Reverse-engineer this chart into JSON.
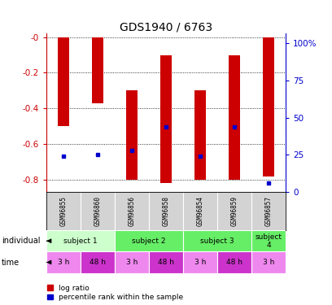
{
  "title": "GDS1940 / 6763",
  "samples": [
    "GSM96855",
    "GSM96860",
    "GSM96856",
    "GSM96858",
    "GSM96854",
    "GSM96859",
    "GSM96857"
  ],
  "bar_bottoms": [
    -0.5,
    -0.37,
    -0.8,
    -0.82,
    -0.8,
    -0.8,
    -0.78
  ],
  "bar_tops": [
    0.0,
    0.0,
    -0.3,
    -0.1,
    -0.3,
    -0.1,
    0.0
  ],
  "percentile_ranks": [
    24,
    25,
    28,
    44,
    24,
    44,
    6
  ],
  "ylim_left": [
    -0.87,
    0.02
  ],
  "ylim_right": [
    0,
    106.47
  ],
  "yticks_left": [
    0.0,
    -0.2,
    -0.4,
    -0.6,
    -0.8
  ],
  "yticks_right": [
    0,
    25,
    50,
    75,
    100
  ],
  "ytick_labels_left": [
    "-0",
    "-0.2",
    "-0.4",
    "-0.6",
    "-0.8"
  ],
  "ytick_labels_right": [
    "0",
    "25",
    "50",
    "75",
    "100%"
  ],
  "bar_color": "#cc0000",
  "blue_color": "#0000cc",
  "bar_width": 0.35,
  "left_axis_color": "#cc0000",
  "right_axis_color": "#0000cc",
  "legend_red_label": "log ratio",
  "legend_blue_label": "percentile rank within the sample",
  "indiv_data": [
    {
      "label": "subject 1",
      "span": [
        0,
        2
      ],
      "color": "#ccffcc"
    },
    {
      "label": "subject 2",
      "span": [
        2,
        4
      ],
      "color": "#66ee66"
    },
    {
      "label": "subject 3",
      "span": [
        4,
        6
      ],
      "color": "#66ee66"
    },
    {
      "label": "subject\n4",
      "span": [
        6,
        7
      ],
      "color": "#66ee66"
    }
  ],
  "time_labels": [
    "3 h",
    "48 h",
    "3 h",
    "48 h",
    "3 h",
    "48 h",
    "3 h"
  ],
  "time_colors": [
    "#ee88ee",
    "#cc33cc",
    "#ee88ee",
    "#cc33cc",
    "#ee88ee",
    "#cc33cc",
    "#ee88ee"
  ]
}
